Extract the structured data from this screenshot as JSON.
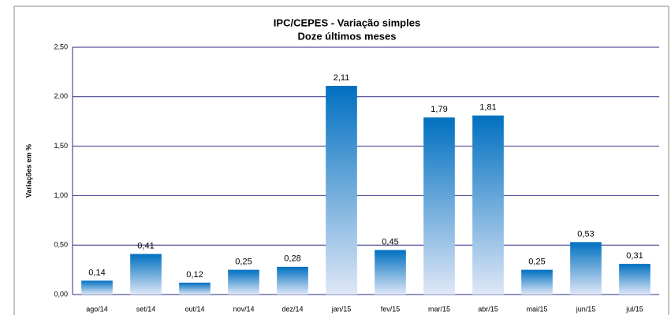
{
  "chart_data": {
    "type": "bar",
    "title": "IPC/CEPES - Variação simples",
    "subtitle": "Doze últimos meses",
    "y_label": "Variações em %",
    "categories": [
      "ago/14",
      "set/14",
      "out/14",
      "nov/14",
      "dez/14",
      "jan/15",
      "fev/15",
      "mar/15",
      "abr/15",
      "mai/15",
      "jun/15",
      "jul/15"
    ],
    "values": [
      0.14,
      0.41,
      0.12,
      0.25,
      0.28,
      2.11,
      0.45,
      1.79,
      1.81,
      0.25,
      0.53,
      0.31
    ],
    "value_labels": [
      "0,14",
      "0,41",
      "0,12",
      "0,25",
      "0,28",
      "2,11",
      "0,45",
      "1,79",
      "1,81",
      "0,25",
      "0,53",
      "0,31"
    ],
    "color": "#0070c0",
    "ylim": [
      0,
      2.5
    ],
    "yticks": [
      {
        "value": 0,
        "label": "0,00"
      },
      {
        "value": 0.5,
        "label": "0,50"
      },
      {
        "value": 1,
        "label": "1,00"
      },
      {
        "value": 1.5,
        "label": "1,50"
      },
      {
        "value": 2,
        "label": "2,00"
      },
      {
        "value": 2.5,
        "label": "2,50"
      }
    ],
    "grid": true
  }
}
